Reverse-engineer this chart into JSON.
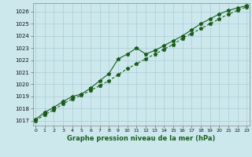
{
  "title": "Graphe pression niveau de la mer (hPa)",
  "background_color": "#cce8ed",
  "grid_color": "#aacdd4",
  "line_color": "#1a5c1a",
  "x_ticks": [
    0,
    1,
    2,
    3,
    4,
    5,
    6,
    7,
    8,
    9,
    10,
    11,
    12,
    13,
    14,
    15,
    16,
    17,
    18,
    19,
    20,
    21,
    22,
    23
  ],
  "y_ticks": [
    1017,
    1018,
    1019,
    1020,
    1021,
    1022,
    1023,
    1024,
    1025,
    1026
  ],
  "ylim": [
    1016.6,
    1026.7
  ],
  "xlim": [
    -0.3,
    23.3
  ],
  "series1_x": [
    0,
    1,
    2,
    3,
    4,
    5,
    6,
    7,
    8,
    9,
    10,
    11,
    12,
    13,
    14,
    15,
    16,
    17,
    18,
    19,
    20,
    21,
    22,
    23
  ],
  "series1_y": [
    1017.1,
    1017.7,
    1018.1,
    1018.6,
    1019.0,
    1019.2,
    1019.7,
    1020.3,
    1020.9,
    1022.1,
    1022.5,
    1023.0,
    1022.5,
    1022.8,
    1023.2,
    1023.6,
    1024.0,
    1024.5,
    1025.0,
    1025.4,
    1025.8,
    1026.1,
    1026.3,
    1026.5
  ],
  "series2_x": [
    0,
    1,
    2,
    3,
    4,
    5,
    6,
    7,
    8,
    9,
    10,
    11,
    12,
    13,
    14,
    15,
    16,
    17,
    18,
    19,
    20,
    21,
    22,
    23
  ],
  "series2_y": [
    1017.0,
    1017.5,
    1017.9,
    1018.4,
    1018.8,
    1019.1,
    1019.5,
    1019.9,
    1020.3,
    1020.8,
    1021.3,
    1021.7,
    1022.1,
    1022.5,
    1022.9,
    1023.3,
    1023.8,
    1024.2,
    1024.6,
    1025.0,
    1025.4,
    1025.8,
    1026.1,
    1026.4
  ],
  "figsize": [
    3.2,
    2.0
  ],
  "dpi": 100
}
